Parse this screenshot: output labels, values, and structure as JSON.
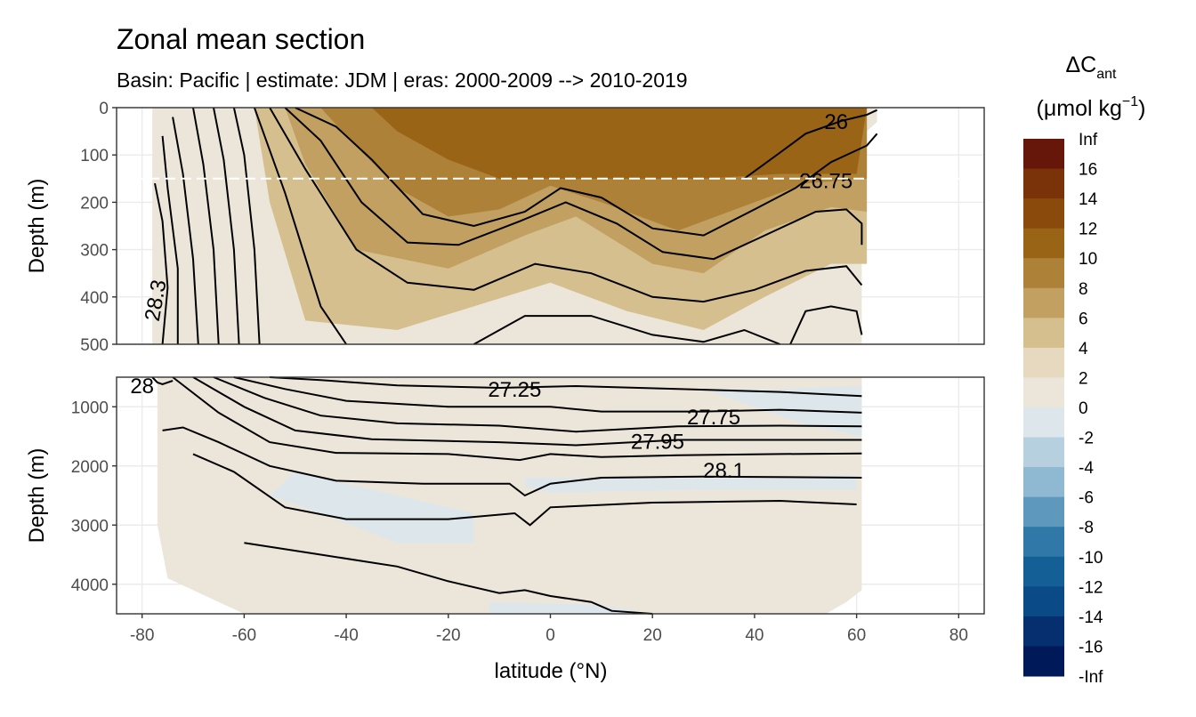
{
  "chart_data": {
    "type": "heatmap",
    "title": "Zonal mean section",
    "subtitle": "Basin: Pacific | estimate: JDM  | eras: 2000-2009 --> 2010-2019",
    "xlabel": "latitude (°N)",
    "ylabel_top": "Depth (m)",
    "ylabel_bottom": "Depth (m)",
    "xlim": [
      -85,
      85
    ],
    "x_ticks": [
      -80,
      -60,
      -40,
      -20,
      0,
      20,
      40,
      60,
      80
    ],
    "panels": [
      {
        "name": "upper",
        "ylim": [
          0,
          500
        ],
        "y_ticks": [
          0,
          100,
          200,
          300,
          400,
          500
        ],
        "reference_line_depth": 150
      },
      {
        "name": "lower",
        "ylim": [
          500,
          4500
        ],
        "y_ticks": [
          1000,
          2000,
          3000,
          4000
        ]
      }
    ],
    "legend": {
      "title": "ΔC",
      "title_sub": "ant",
      "unit": "(μmol kg",
      "unit_sup": "−1",
      "unit_close": ")",
      "placement": "right",
      "breaks": [
        "Inf",
        "16",
        "14",
        "12",
        "10",
        "8",
        "6",
        "4",
        "2",
        "0",
        "-2",
        "-4",
        "-6",
        "-8",
        "-10",
        "-12",
        "-14",
        "-16",
        "-Inf"
      ],
      "colors": [
        "#67160a",
        "#7a3208",
        "#8a4a0b",
        "#9a6416",
        "#ae8139",
        "#c1a061",
        "#d6bf8f",
        "#e6d9c0",
        "#ece6da",
        "#dde6eb",
        "#b7d0e0",
        "#8fb8d2",
        "#5e98bd",
        "#2f78a8",
        "#135f96",
        "#0a4a86",
        "#062f70",
        "#001a59"
      ]
    },
    "isopycnals": [
      {
        "value": 26.0,
        "label": "26"
      },
      {
        "value": 26.75,
        "label": "26.75"
      },
      {
        "value": 27.25,
        "label": "27.25"
      },
      {
        "value": 27.75,
        "label": "27.75"
      },
      {
        "value": 27.95,
        "label": "27.95"
      },
      {
        "value": 28.1,
        "label": "28.1"
      },
      {
        "value": 28.3,
        "label": "28.3"
      },
      {
        "value": 28.3,
        "label": "28"
      }
    ],
    "upper_fill_bands": [
      {
        "color_index": 3,
        "pts": [
          [
            -35,
            0
          ],
          [
            -30,
            50
          ],
          [
            -20,
            110
          ],
          [
            -10,
            150
          ],
          [
            10,
            150
          ],
          [
            30,
            150
          ],
          [
            45,
            140
          ],
          [
            60,
            140
          ],
          [
            62,
            0
          ]
        ]
      },
      {
        "color_index": 4,
        "pts": [
          [
            -45,
            0
          ],
          [
            -40,
            60
          ],
          [
            -30,
            170
          ],
          [
            -20,
            230
          ],
          [
            -10,
            215
          ],
          [
            0,
            165
          ],
          [
            10,
            200
          ],
          [
            25,
            260
          ],
          [
            35,
            220
          ],
          [
            50,
            160
          ],
          [
            62,
            150
          ],
          [
            62,
            0
          ]
        ]
      },
      {
        "color_index": 5,
        "pts": [
          [
            -52,
            0
          ],
          [
            -48,
            120
          ],
          [
            -38,
            300
          ],
          [
            -20,
            340
          ],
          [
            -5,
            270
          ],
          [
            5,
            230
          ],
          [
            20,
            330
          ],
          [
            30,
            350
          ],
          [
            42,
            260
          ],
          [
            55,
            210
          ],
          [
            62,
            220
          ],
          [
            62,
            0
          ]
        ]
      },
      {
        "color_index": 6,
        "pts": [
          [
            -58,
            0
          ],
          [
            -55,
            200
          ],
          [
            -48,
            450
          ],
          [
            -30,
            470
          ],
          [
            -15,
            420
          ],
          [
            0,
            370
          ],
          [
            15,
            430
          ],
          [
            30,
            470
          ],
          [
            42,
            400
          ],
          [
            55,
            330
          ],
          [
            62,
            330
          ],
          [
            62,
            0
          ]
        ]
      }
    ],
    "upper_isolines": [
      {
        "label": "26",
        "pts": [
          [
            38,
            150
          ],
          [
            45,
            95
          ],
          [
            50,
            55
          ],
          [
            57,
            28
          ],
          [
            62,
            15
          ],
          [
            64,
            5
          ]
        ]
      },
      {
        "label": "26.75",
        "pts": [
          [
            -50,
            0
          ],
          [
            -42,
            40
          ],
          [
            -35,
            110
          ],
          [
            -25,
            225
          ],
          [
            -15,
            250
          ],
          [
            -5,
            220
          ],
          [
            2,
            170
          ],
          [
            10,
            190
          ],
          [
            20,
            255
          ],
          [
            30,
            270
          ],
          [
            40,
            215
          ],
          [
            48,
            170
          ],
          [
            55,
            115
          ],
          [
            62,
            80
          ],
          [
            64,
            55
          ]
        ]
      },
      {
        "label": "",
        "pts": [
          [
            -52,
            0
          ],
          [
            -45,
            70
          ],
          [
            -37,
            200
          ],
          [
            -28,
            285
          ],
          [
            -18,
            290
          ],
          [
            -6,
            240
          ],
          [
            3,
            200
          ],
          [
            13,
            245
          ],
          [
            22,
            305
          ],
          [
            32,
            320
          ],
          [
            42,
            270
          ],
          [
            52,
            220
          ],
          [
            58,
            215
          ],
          [
            61,
            245
          ],
          [
            61,
            290
          ]
        ]
      },
      {
        "label": "",
        "pts": [
          [
            -55,
            0
          ],
          [
            -48,
            130
          ],
          [
            -38,
            300
          ],
          [
            -28,
            370
          ],
          [
            -15,
            385
          ],
          [
            -3,
            330
          ],
          [
            8,
            350
          ],
          [
            20,
            400
          ],
          [
            30,
            410
          ],
          [
            40,
            385
          ],
          [
            50,
            345
          ],
          [
            58,
            335
          ],
          [
            61,
            375
          ]
        ]
      },
      {
        "label": "",
        "pts": [
          [
            -58,
            0
          ],
          [
            -52,
            180
          ],
          [
            -45,
            420
          ],
          [
            -40,
            500
          ]
        ]
      },
      {
        "label": "",
        "pts": [
          [
            -15,
            500
          ],
          [
            -5,
            440
          ],
          [
            8,
            440
          ],
          [
            20,
            480
          ],
          [
            30,
            495
          ],
          [
            38,
            470
          ],
          [
            45,
            500
          ]
        ]
      },
      {
        "label": "",
        "pts": [
          [
            47,
            500
          ],
          [
            50,
            430
          ],
          [
            55,
            420
          ],
          [
            60,
            430
          ],
          [
            61,
            480
          ]
        ]
      },
      {
        "label": "",
        "pts": [
          [
            -62,
            0
          ],
          [
            -60,
            100
          ],
          [
            -58,
            300
          ],
          [
            -57,
            500
          ]
        ]
      },
      {
        "label": "",
        "pts": [
          [
            -66,
            0
          ],
          [
            -64,
            110
          ],
          [
            -62,
            300
          ],
          [
            -61,
            500
          ]
        ]
      },
      {
        "label": "",
        "pts": [
          [
            -70,
            0
          ],
          [
            -68,
            120
          ],
          [
            -66,
            300
          ],
          [
            -65,
            500
          ]
        ]
      },
      {
        "label": "",
        "pts": [
          [
            -74,
            20
          ],
          [
            -72,
            140
          ],
          [
            -70,
            320
          ],
          [
            -69,
            500
          ]
        ]
      },
      {
        "label": "",
        "pts": [
          [
            -76,
            60
          ],
          [
            -75,
            170
          ],
          [
            -73,
            340
          ],
          [
            -73,
            500
          ]
        ]
      },
      {
        "label": "28.3",
        "pts": [
          [
            -77.5,
            160
          ],
          [
            -76,
            240
          ],
          [
            -75,
            380
          ],
          [
            -76,
            500
          ]
        ]
      }
    ],
    "lower_fill_bands": [
      {
        "color_index": 9,
        "pts": [
          [
            -50,
            2100
          ],
          [
            -35,
            2400
          ],
          [
            -25,
            2600
          ],
          [
            -15,
            2800
          ],
          [
            -15,
            3300
          ],
          [
            -30,
            3300
          ],
          [
            -45,
            2800
          ],
          [
            -55,
            2500
          ]
        ]
      },
      {
        "color_index": 9,
        "pts": [
          [
            -5,
            2200
          ],
          [
            20,
            2200
          ],
          [
            40,
            2200
          ],
          [
            60,
            2150
          ],
          [
            60,
            2400
          ],
          [
            30,
            2400
          ],
          [
            0,
            2450
          ],
          [
            -5,
            2350
          ]
        ]
      },
      {
        "color_index": 9,
        "pts": [
          [
            30,
            700
          ],
          [
            45,
            700
          ],
          [
            61,
            650
          ],
          [
            61,
            1500
          ],
          [
            50,
            1300
          ],
          [
            40,
            1000
          ]
        ]
      },
      {
        "color_index": 9,
        "pts": [
          [
            -12,
            4300
          ],
          [
            10,
            4350
          ],
          [
            20,
            4500
          ],
          [
            -12,
            4500
          ]
        ]
      }
    ],
    "lower_isolines": [
      {
        "label": "27.25",
        "pts": [
          [
            -55,
            500
          ],
          [
            -45,
            550
          ],
          [
            -30,
            640
          ],
          [
            -10,
            680
          ],
          [
            5,
            650
          ],
          [
            25,
            700
          ],
          [
            45,
            750
          ],
          [
            61,
            820
          ]
        ]
      },
      {
        "label": "27.75",
        "pts": [
          [
            -62,
            500
          ],
          [
            -52,
            700
          ],
          [
            -40,
            900
          ],
          [
            -20,
            1000
          ],
          [
            0,
            1000
          ],
          [
            10,
            1080
          ],
          [
            30,
            1080
          ],
          [
            45,
            1050
          ],
          [
            61,
            1100
          ]
        ]
      },
      {
        "label": "27.95",
        "pts": [
          [
            -66,
            500
          ],
          [
            -56,
            850
          ],
          [
            -45,
            1150
          ],
          [
            -30,
            1280
          ],
          [
            -10,
            1320
          ],
          [
            5,
            1420
          ],
          [
            25,
            1330
          ],
          [
            45,
            1320
          ],
          [
            61,
            1330
          ]
        ]
      },
      {
        "label": "",
        "pts": [
          [
            -70,
            500
          ],
          [
            -60,
            1000
          ],
          [
            -50,
            1400
          ],
          [
            -35,
            1550
          ],
          [
            -10,
            1600
          ],
          [
            5,
            1650
          ],
          [
            25,
            1560
          ],
          [
            45,
            1560
          ],
          [
            61,
            1560
          ]
        ]
      },
      {
        "label": "28.1",
        "pts": [
          [
            -74,
            500
          ],
          [
            -65,
            1100
          ],
          [
            -55,
            1600
          ],
          [
            -42,
            1780
          ],
          [
            -20,
            1800
          ],
          [
            -6,
            1900
          ],
          [
            0,
            1800
          ],
          [
            10,
            1850
          ],
          [
            25,
            1820
          ],
          [
            45,
            1800
          ],
          [
            61,
            1790
          ]
        ]
      },
      {
        "label": "",
        "pts": [
          [
            -76,
            1400
          ],
          [
            -72,
            1350
          ],
          [
            -65,
            1600
          ],
          [
            -55,
            2000
          ],
          [
            -42,
            2250
          ],
          [
            -25,
            2300
          ],
          [
            -8,
            2300
          ],
          [
            -5,
            2500
          ],
          [
            0,
            2300
          ],
          [
            10,
            2200
          ],
          [
            30,
            2180
          ],
          [
            61,
            2200
          ]
        ]
      },
      {
        "label": "",
        "pts": [
          [
            -70,
            1800
          ],
          [
            -62,
            2100
          ],
          [
            -52,
            2700
          ],
          [
            -40,
            2900
          ],
          [
            -20,
            2900
          ],
          [
            -7,
            2800
          ],
          [
            -4,
            3000
          ],
          [
            0,
            2700
          ],
          [
            20,
            2620
          ],
          [
            45,
            2590
          ],
          [
            60,
            2650
          ]
        ]
      },
      {
        "label": "",
        "pts": [
          [
            -60,
            3300
          ],
          [
            -45,
            3500
          ],
          [
            -30,
            3700
          ],
          [
            -20,
            3950
          ],
          [
            -10,
            4150
          ],
          [
            -5,
            4100
          ],
          [
            0,
            4200
          ],
          [
            8,
            4300
          ],
          [
            12,
            4450
          ],
          [
            20,
            4500
          ]
        ]
      },
      {
        "label": "28",
        "pts": [
          [
            -78,
            500
          ],
          [
            -77,
            590
          ],
          [
            -76,
            620
          ],
          [
            -74,
            560
          ]
        ]
      }
    ]
  }
}
